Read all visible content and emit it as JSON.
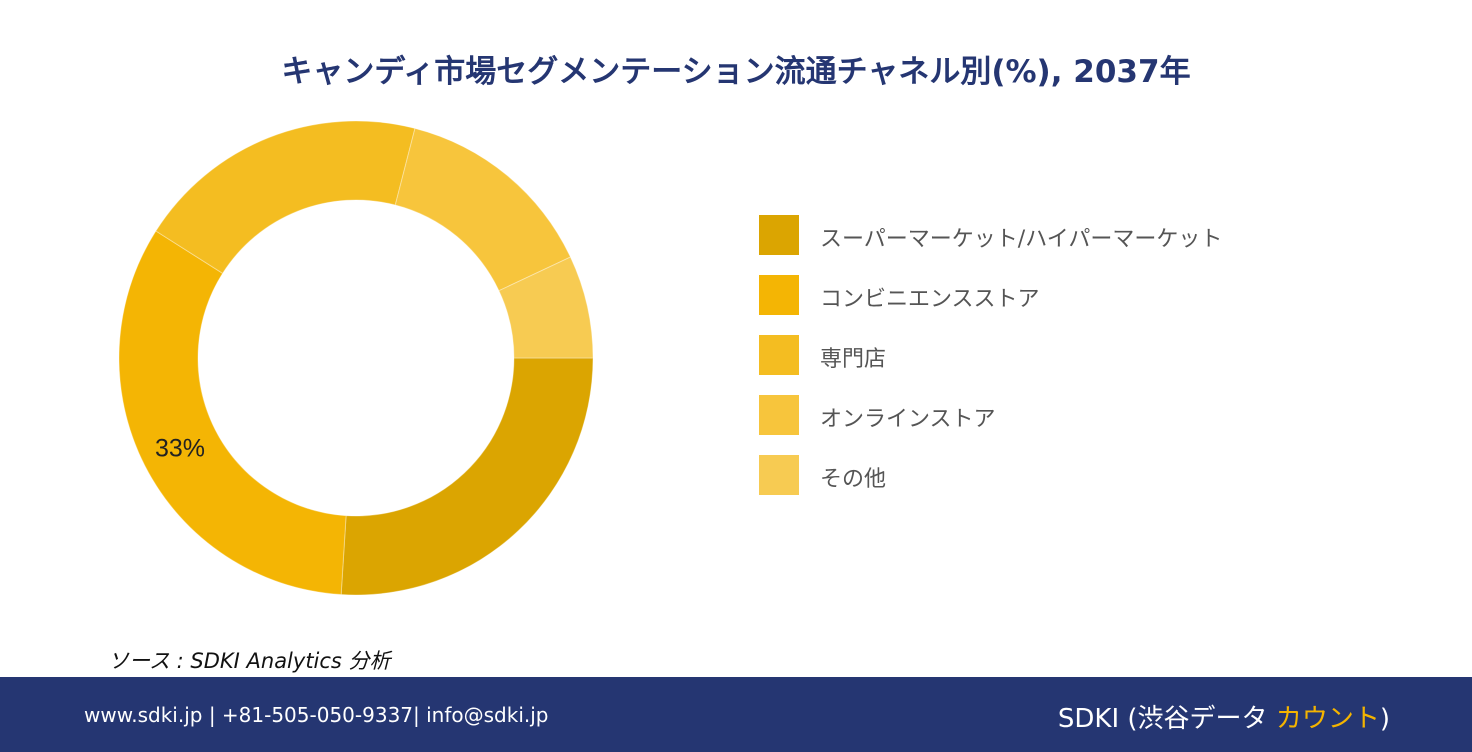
{
  "chart_data": {
    "type": "pie",
    "title": "キャンディ市場セグメンテーション流通チャネル別(%), 2037年",
    "categories": [
      "スーパーマーケット/ハイパーマーケット",
      "コンビニエンスストア",
      "専門店",
      "オンラインストア",
      "その他"
    ],
    "values": [
      26,
      33,
      20,
      14,
      7
    ],
    "colors": [
      "#dba501",
      "#f4b504",
      "#f4bd21",
      "#f7c53c",
      "#f7cb52"
    ],
    "data_labels": [
      "",
      "33%",
      "",
      "",
      ""
    ],
    "donut": true,
    "legend_position": "right"
  },
  "source": "ソース : SDKI Analytics 分析",
  "footer": {
    "contact": "www.sdki.jp | +81-505-050-9337| info@sdki.jp",
    "brand_prefix": "SDKI (渋谷データ ",
    "brand_accent": "カウント",
    "brand_suffix": ")"
  }
}
